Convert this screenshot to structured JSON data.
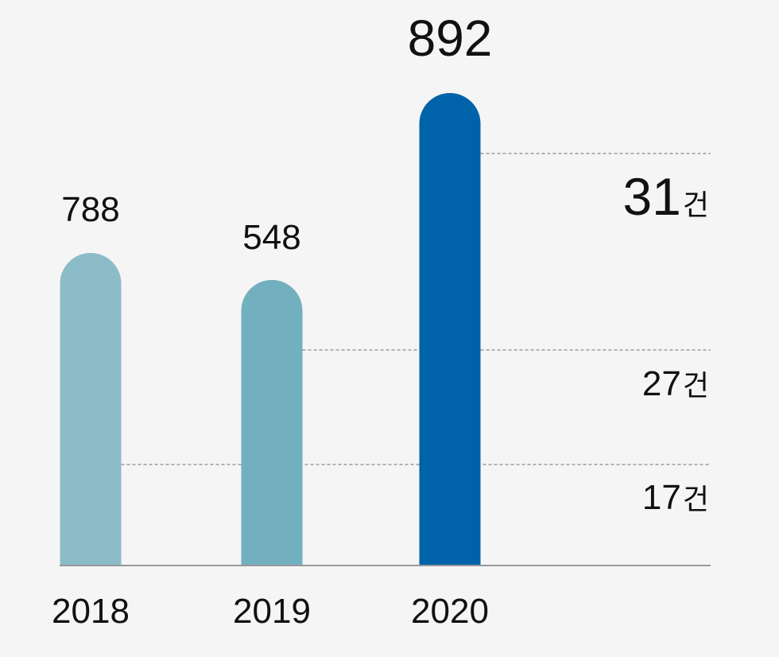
{
  "chart_data": {
    "type": "bar",
    "categories": [
      "2018",
      "2019",
      "2020"
    ],
    "values": [
      788,
      548,
      892
    ],
    "bar_colors": [
      "#8bbcc8",
      "#72afbf",
      "#0062a8"
    ],
    "side_counts": [
      {
        "number": "17",
        "unit": "건"
      },
      {
        "number": "27",
        "unit": "건"
      },
      {
        "number": "31",
        "unit": "건"
      }
    ],
    "grid": false,
    "legend": "none"
  }
}
